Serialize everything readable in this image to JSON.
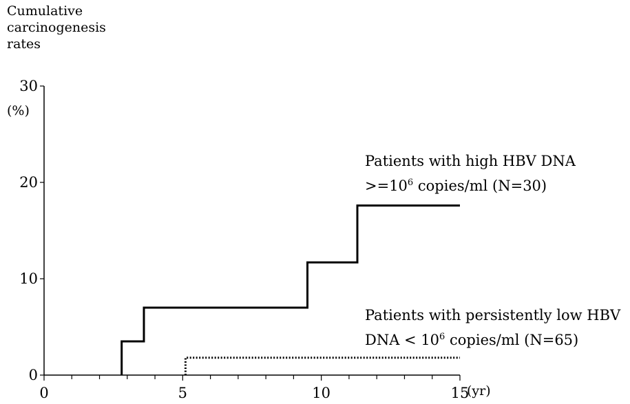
{
  "chart_data": {
    "type": "line",
    "ylabel_lines": [
      "Cumulative",
      "carcinogenesis",
      "rates"
    ],
    "yunit": "(%)",
    "xunit": "(yr)",
    "xlim": [
      0,
      15
    ],
    "ylim": [
      0,
      30
    ],
    "x_ticks": [
      "0",
      "5",
      "10",
      "15"
    ],
    "y_ticks": [
      "0",
      "10",
      "20",
      "30"
    ],
    "series": [
      {
        "name_lines": [
          "Patients with high HBV DNA",
          ">=10",
          "6",
          " copies/ml (N=30)"
        ],
        "style": "solid",
        "color": "#000000",
        "steps": [
          [
            2.8,
            0
          ],
          [
            2.8,
            3.5
          ],
          [
            3.6,
            3.5
          ],
          [
            3.6,
            7.0
          ],
          [
            9.5,
            7.0
          ],
          [
            9.5,
            11.7
          ],
          [
            11.3,
            11.7
          ],
          [
            11.3,
            17.6
          ],
          [
            15,
            17.6
          ]
        ]
      },
      {
        "name_lines": [
          "Patients with persistently low HBV",
          "DNA < 10",
          "6",
          " copies/ml (N=65)"
        ],
        "style": "dotted",
        "color": "#000000",
        "steps": [
          [
            5.1,
            0
          ],
          [
            5.1,
            1.8
          ],
          [
            15,
            1.8
          ]
        ]
      }
    ]
  }
}
